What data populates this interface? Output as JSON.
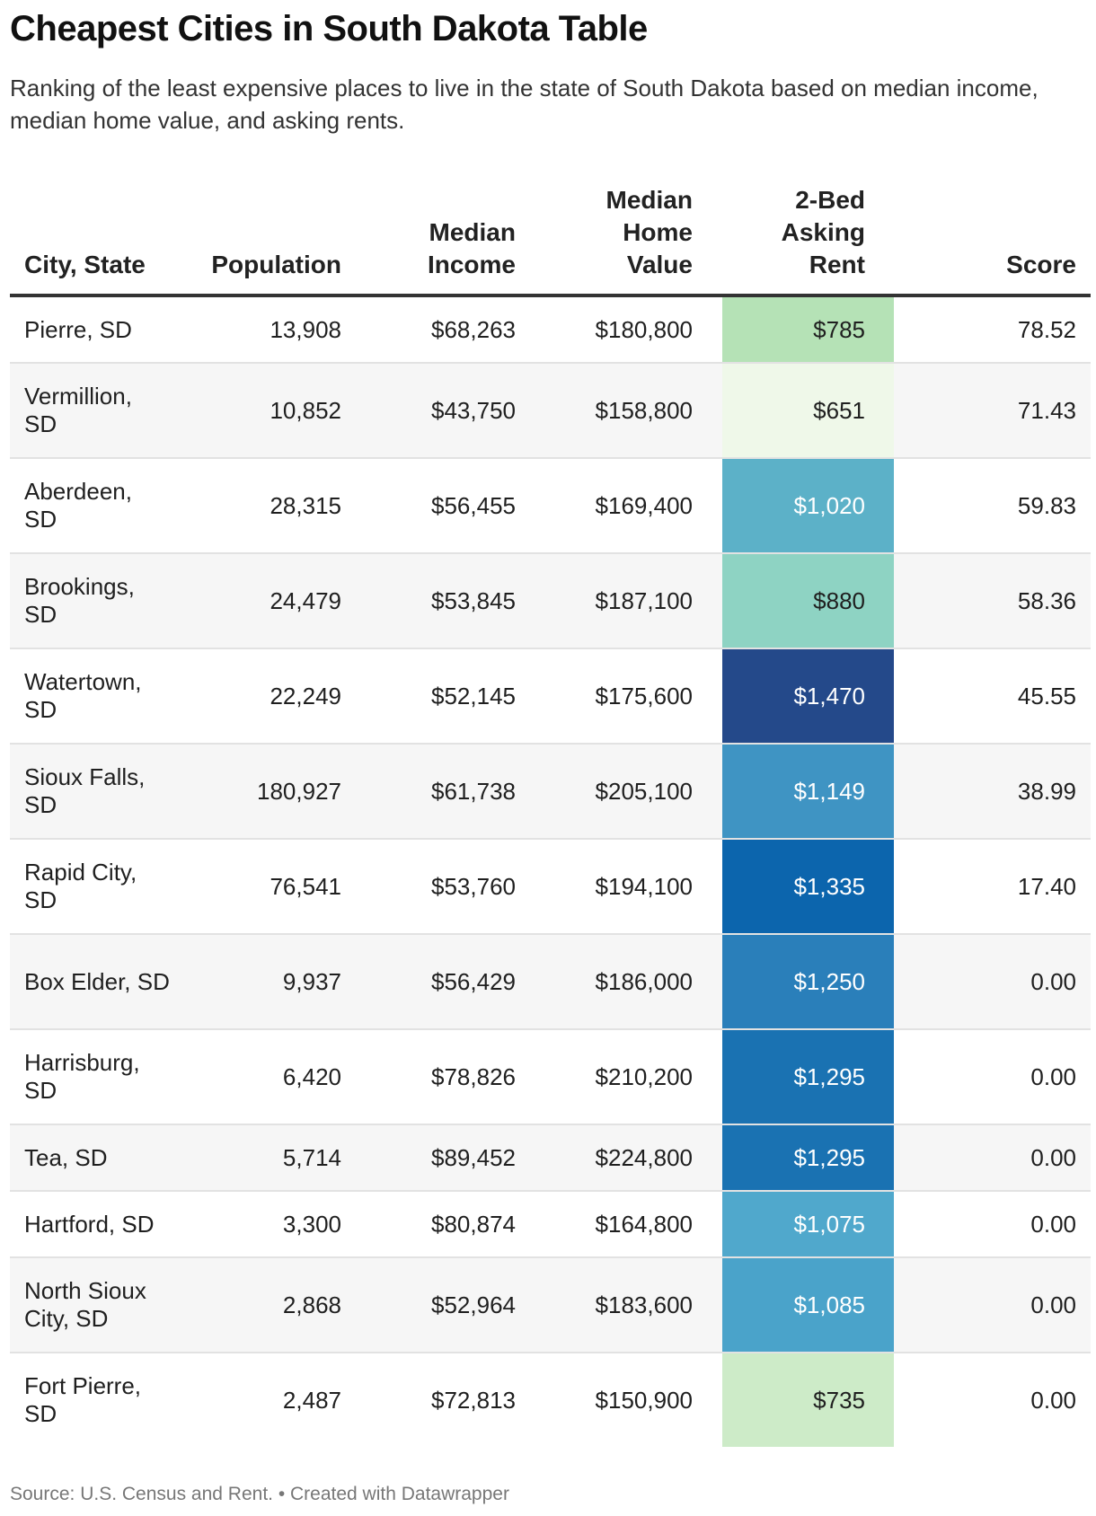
{
  "title": "Cheapest Cities in South Dakota Table",
  "subtitle": "Ranking of the least expensive places to live in the state of South Dakota based on median income, median home value, and asking rents.",
  "footer": "Source: U.S. Census and Rent. • Created with Datawrapper",
  "chart_data": {
    "type": "table",
    "columns": [
      "City, State",
      "Population",
      "Median Income",
      "Median Home Value",
      "2-Bed Asking Rent",
      "Score"
    ],
    "rows": [
      {
        "city": "Pierre, SD",
        "population": "13,908",
        "income": "$68,263",
        "home_value": "$180,800",
        "rent": "$785",
        "score": "78.52",
        "rent_bg": "#b5e2b6",
        "rent_fg": "#1f1f1f"
      },
      {
        "city": "Vermillion, SD",
        "population": "10,852",
        "income": "$43,750",
        "home_value": "$158,800",
        "rent": "$651",
        "score": "71.43",
        "rent_bg": "#eff8e9",
        "rent_fg": "#1f1f1f"
      },
      {
        "city": "Aberdeen, SD",
        "population": "28,315",
        "income": "$56,455",
        "home_value": "$169,400",
        "rent": "$1,020",
        "score": "59.83",
        "rent_bg": "#5cb1c8",
        "rent_fg": "#ffffff"
      },
      {
        "city": "Brookings, SD",
        "population": "24,479",
        "income": "$53,845",
        "home_value": "$187,100",
        "rent": "$880",
        "score": "58.36",
        "rent_bg": "#8ed3c3",
        "rent_fg": "#1f1f1f"
      },
      {
        "city": "Watertown, SD",
        "population": "22,249",
        "income": "$52,145",
        "home_value": "$175,600",
        "rent": "$1,470",
        "score": "45.55",
        "rent_bg": "#24498a",
        "rent_fg": "#ffffff"
      },
      {
        "city": "Sioux Falls, SD",
        "population": "180,927",
        "income": "$61,738",
        "home_value": "$205,100",
        "rent": "$1,149",
        "score": "38.99",
        "rent_bg": "#3f94c3",
        "rent_fg": "#ffffff"
      },
      {
        "city": "Rapid City, SD",
        "population": "76,541",
        "income": "$53,760",
        "home_value": "$194,100",
        "rent": "$1,335",
        "score": "17.40",
        "rent_bg": "#0c65ad",
        "rent_fg": "#ffffff"
      },
      {
        "city": "Box Elder, SD",
        "population": "9,937",
        "income": "$56,429",
        "home_value": "$186,000",
        "rent": "$1,250",
        "score": "0.00",
        "rent_bg": "#2a7fba",
        "rent_fg": "#ffffff"
      },
      {
        "city": "Harrisburg, SD",
        "population": "6,420",
        "income": "$78,826",
        "home_value": "$210,200",
        "rent": "$1,295",
        "score": "0.00",
        "rent_bg": "#1a72b2",
        "rent_fg": "#ffffff"
      },
      {
        "city": "Tea, SD",
        "population": "5,714",
        "income": "$89,452",
        "home_value": "$224,800",
        "rent": "$1,295",
        "score": "0.00",
        "rent_bg": "#1a72b2",
        "rent_fg": "#ffffff"
      },
      {
        "city": "Hartford, SD",
        "population": "3,300",
        "income": "$80,874",
        "home_value": "$164,800",
        "rent": "$1,075",
        "score": "0.00",
        "rent_bg": "#50a8cc",
        "rent_fg": "#ffffff"
      },
      {
        "city": "North Sioux City, SD",
        "population": "2,868",
        "income": "$52,964",
        "home_value": "$183,600",
        "rent": "$1,085",
        "score": "0.00",
        "rent_bg": "#4aa3ca",
        "rent_fg": "#ffffff"
      },
      {
        "city": "Fort Pierre, SD",
        "population": "2,487",
        "income": "$72,813",
        "home_value": "$150,900",
        "rent": "$735",
        "score": "0.00",
        "rent_bg": "#cdebc8",
        "rent_fg": "#1f1f1f"
      }
    ]
  }
}
